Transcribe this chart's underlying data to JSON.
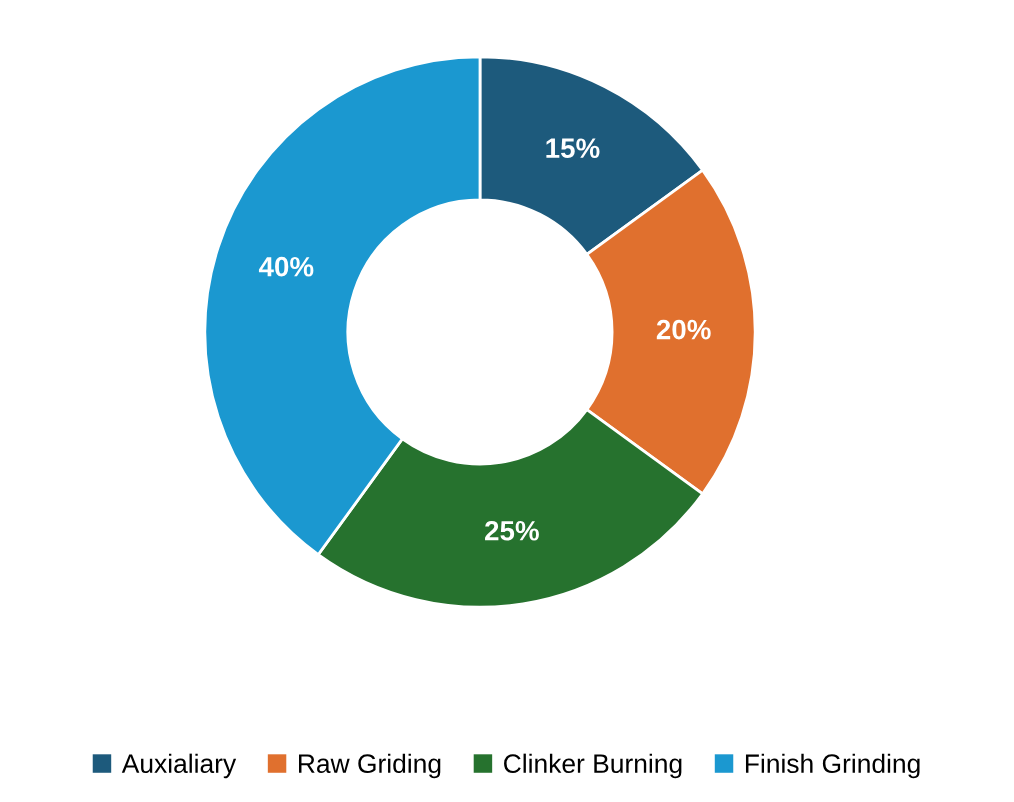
{
  "chart_data": {
    "type": "donut",
    "categories": [
      "Auxialiary",
      "Raw Griding",
      "Clinker Burning",
      "Finish Grinding"
    ],
    "values": [
      15,
      20,
      25,
      40
    ],
    "colors": [
      "#1d5a7c",
      "#e0702e",
      "#26722e",
      "#1b98d0"
    ],
    "value_labels": [
      "15%",
      "20%",
      "25%",
      "40%"
    ],
    "legend": "bottom"
  }
}
